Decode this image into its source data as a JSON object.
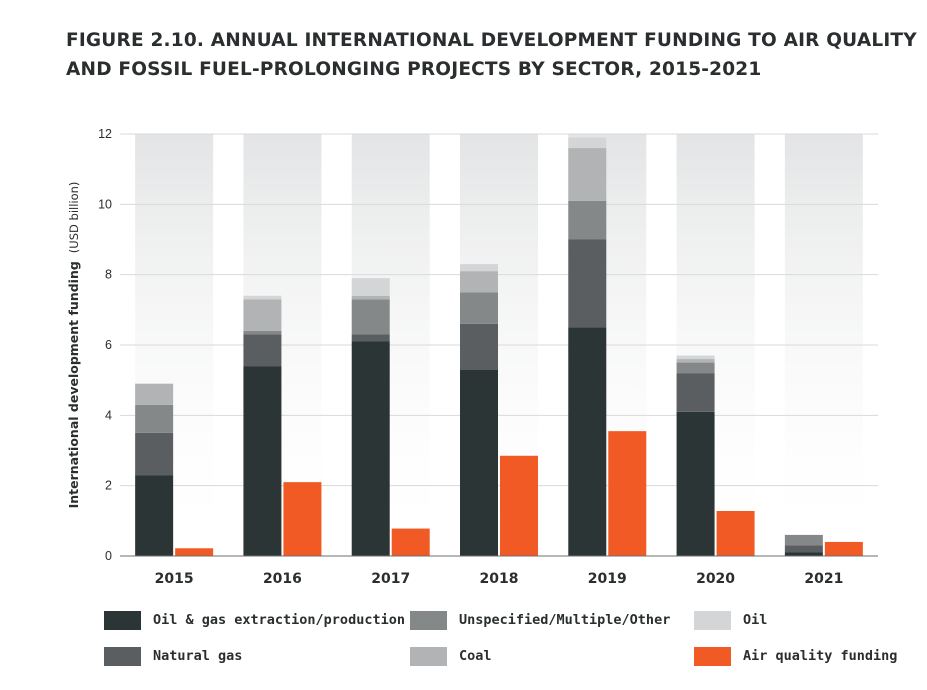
{
  "title": {
    "line1": "FIGURE 2.10.  ANNUAL INTERNATIONAL DEVELOPMENT FUNDING TO AIR QUALITY",
    "line2": "AND FOSSIL FUEL-PROLONGING PROJECTS BY SECTOR, 2015-2021"
  },
  "chart_data": {
    "type": "bar",
    "title": "FIGURE 2.10.  ANNUAL INTERNATIONAL DEVELOPMENT FUNDING TO AIR QUALITY AND FOSSIL FUEL-PROLONGING PROJECTS BY SECTOR, 2015-2021",
    "xlabel": "",
    "ylabel": "International development funding",
    "ylabel_unit": "(USD billion)",
    "ylim": [
      0,
      12
    ],
    "yticks": [
      "0",
      "2",
      "4",
      "6",
      "8",
      "10",
      "12"
    ],
    "grid": true,
    "legend_position": "bottom",
    "categories": [
      "2015",
      "2016",
      "2017",
      "2018",
      "2019",
      "2020",
      "2021"
    ],
    "stacked_series": [
      {
        "name": "Oil & gas extraction/production",
        "color": "#2c3536",
        "values": [
          2.3,
          5.4,
          6.1,
          5.3,
          6.5,
          4.1,
          0.1
        ]
      },
      {
        "name": "Natural gas",
        "color": "#5a5e60",
        "values": [
          1.2,
          0.9,
          0.2,
          1.3,
          2.5,
          1.1,
          0.2
        ]
      },
      {
        "name": "Unspecified/Multiple/Other",
        "color": "#858889",
        "values": [
          0.8,
          0.1,
          1.0,
          0.9,
          1.1,
          0.3,
          0.3
        ]
      },
      {
        "name": "Coal",
        "color": "#b1b3b4",
        "values": [
          0.6,
          0.9,
          0.1,
          0.6,
          1.5,
          0.1,
          0.0
        ]
      },
      {
        "name": "Oil",
        "color": "#d4d5d6",
        "values": [
          0.0,
          0.1,
          0.5,
          0.2,
          0.3,
          0.1,
          0.0
        ]
      }
    ],
    "separate_series": [
      {
        "name": "Air quality funding",
        "color": "#f15a24",
        "values": [
          0.22,
          2.1,
          0.78,
          2.85,
          3.55,
          1.28,
          0.4
        ]
      }
    ]
  },
  "legend": {
    "items": [
      {
        "label": "Oil & gas extraction/production",
        "color": "#2c3536"
      },
      {
        "label": "Unspecified/Multiple/Other",
        "color": "#858889"
      },
      {
        "label": "Oil",
        "color": "#d4d5d6"
      },
      {
        "label": "Natural gas",
        "color": "#5a5e60"
      },
      {
        "label": "Coal",
        "color": "#b1b3b4"
      },
      {
        "label": "Air quality funding",
        "color": "#f15a24"
      }
    ]
  }
}
